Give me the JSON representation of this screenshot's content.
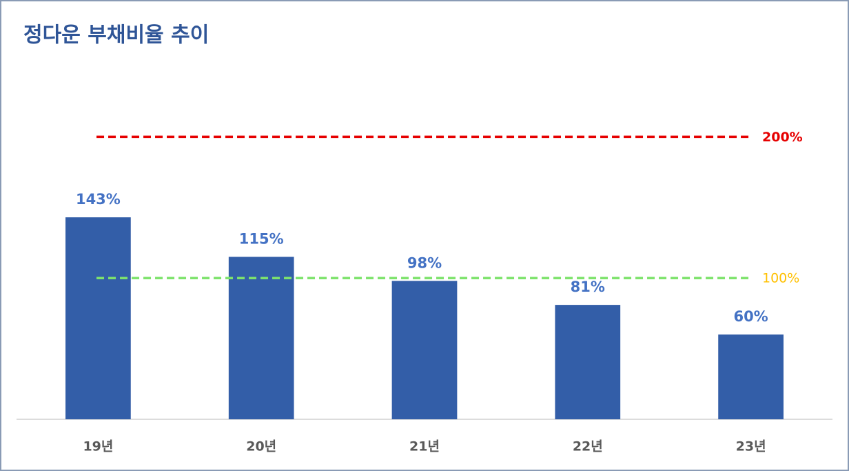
{
  "chart_data": {
    "type": "bar",
    "title": "정다운 부채비율 추이",
    "categories": [
      "19년",
      "20년",
      "21년",
      "22년",
      "23년"
    ],
    "values": [
      143,
      115,
      98,
      81,
      60
    ],
    "value_labels": [
      "143%",
      "115%",
      "98%",
      "81%",
      "60%"
    ],
    "color": "#335ea8",
    "ylim": [
      0,
      250
    ],
    "reference_lines": [
      {
        "value": 200,
        "label": "200%",
        "color": "#e60000",
        "label_color": "#e60000"
      },
      {
        "value": 100,
        "label": "100%",
        "color": "#7ee36c",
        "label_color": "#ffc000"
      }
    ]
  }
}
